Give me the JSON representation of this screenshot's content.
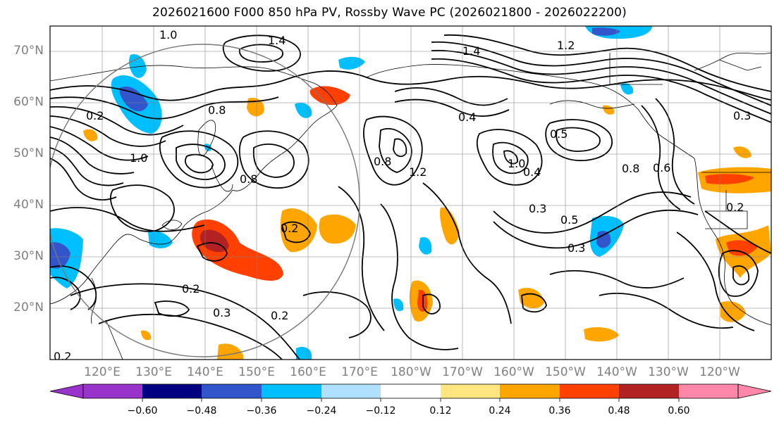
{
  "title": "2026021600 F000 850 hPa PV, Rossby Wave PC (2026021800 - 2026022200)",
  "latitude_labels": [
    "70°N",
    "60°N",
    "50°N",
    "40°N",
    "30°N",
    "20°N"
  ],
  "longitude_labels": [
    "120°E",
    "130°E",
    "140°E",
    "150°E",
    "160°E",
    "170°E",
    "180°W",
    "170°W",
    "160°W",
    "150°W",
    "140°W",
    "130°W",
    "120°W"
  ],
  "colorbar": {
    "tick_labels": [
      "−0.60",
      "−0.48",
      "−0.36",
      "−0.24",
      "−0.12",
      "0.12",
      "0.24",
      "0.36",
      "0.48",
      "0.60"
    ],
    "colors": [
      "#9933cc",
      "#000080",
      "#3355cc",
      "#00bfff",
      "#b0e0ff",
      "#ffffff",
      "#ffe680",
      "#ffa500",
      "#ff4000",
      "#b22222",
      "#ff88aa"
    ]
  },
  "contour_labels": [
    "1.0",
    "1.4",
    "1.4",
    "1.2",
    "0.4",
    "0.2",
    "1.0",
    "0.8",
    "0.8",
    "0.8",
    "1.2",
    "1.0",
    "0.4",
    "0.5",
    "0.3",
    "0.5",
    "0.3",
    "0.8",
    "0.6",
    "0.2",
    "0.2",
    "0.3",
    "0.2",
    "0.2",
    "0.3",
    "0.2"
  ]
}
